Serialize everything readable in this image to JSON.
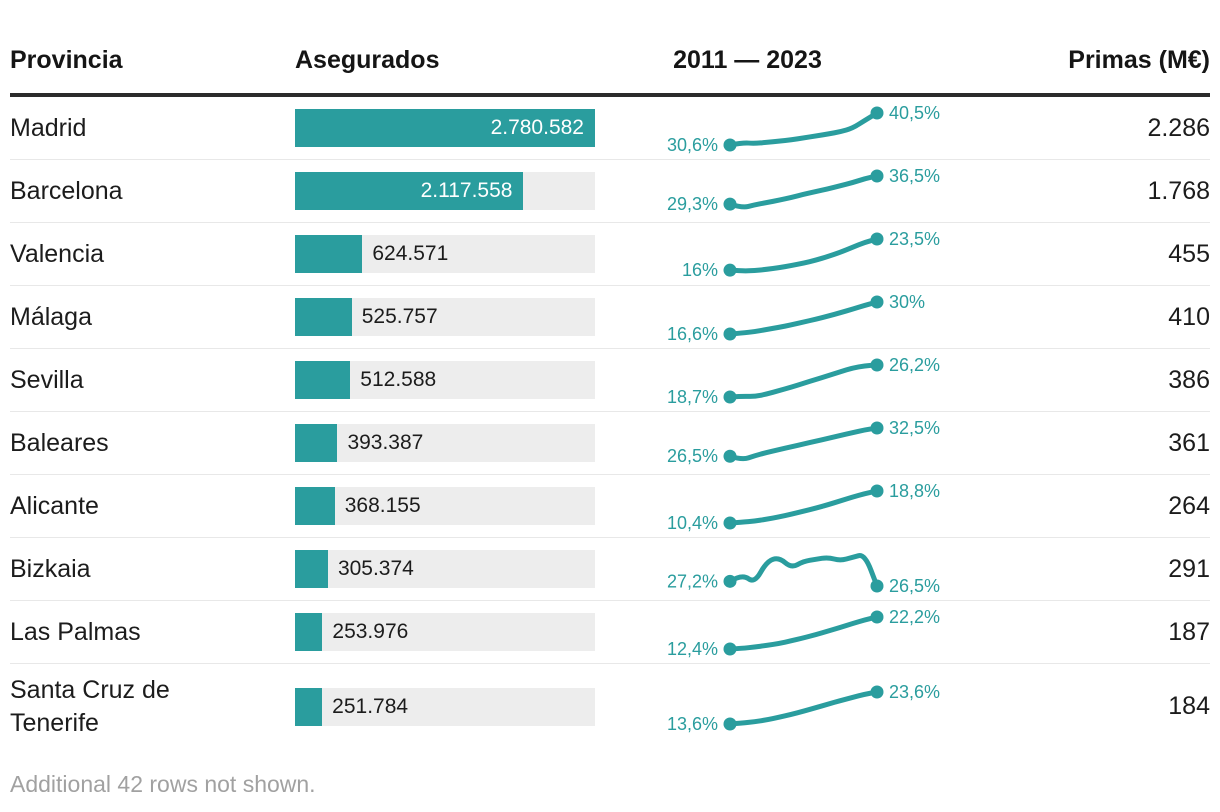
{
  "footer_note": "Additional 42 rows not shown.",
  "colors": {
    "accent": "#2a9d9e",
    "bar_track": "#ededed",
    "row_divider": "#e8e8e8",
    "header_rule": "#2b2b2b",
    "muted_text": "#a1a1a1",
    "text": "#1c1c1c",
    "bar_value_inside": "#ffffff"
  },
  "chart_data": {
    "type": "table",
    "columns": [
      "Provincia",
      "Asegurados",
      "2011 — 2023",
      "Primas (M€)"
    ],
    "bar_column": {
      "field": "asegurados",
      "max": 2780582
    },
    "sparkline": {
      "x_range": [
        2011,
        2023
      ],
      "unit": "%"
    },
    "rows": [
      {
        "provincia": "Madrid",
        "asegurados": 2780582,
        "asegurados_label": "2.780.582",
        "spark_values": [
          30.6,
          31.3,
          31.1,
          31.4,
          31.8,
          32.2,
          32.8,
          33.4,
          34.0,
          34.7,
          35.8,
          38.2,
          40.5
        ],
        "spark_start_label": "30,6%",
        "spark_end_label": "40,5%",
        "primas": 2286,
        "primas_label": "2.286"
      },
      {
        "provincia": "Barcelona",
        "asegurados": 2117558,
        "asegurados_label": "2.117.558",
        "spark_values": [
          29.3,
          28.3,
          29.1,
          29.7,
          30.3,
          31.0,
          31.8,
          32.5,
          33.2,
          34.0,
          34.8,
          35.8,
          36.5
        ],
        "spark_start_label": "29,3%",
        "spark_end_label": "36,5%",
        "primas": 1768,
        "primas_label": "1.768"
      },
      {
        "provincia": "Valencia",
        "asegurados": 624571,
        "asegurados_label": "624.571",
        "spark_values": [
          16.0,
          15.8,
          15.9,
          16.2,
          16.6,
          17.1,
          17.7,
          18.4,
          19.3,
          20.3,
          21.5,
          22.7,
          23.5
        ],
        "spark_start_label": "16%",
        "spark_end_label": "23,5%",
        "primas": 455,
        "primas_label": "455"
      },
      {
        "provincia": "Málaga",
        "asegurados": 525757,
        "asegurados_label": "525.757",
        "spark_values": [
          16.6,
          17.0,
          17.6,
          18.5,
          19.4,
          20.4,
          21.6,
          22.8,
          24.1,
          25.5,
          27.0,
          28.6,
          30.0
        ],
        "spark_start_label": "16,6%",
        "spark_end_label": "30%",
        "primas": 410,
        "primas_label": "410"
      },
      {
        "provincia": "Sevilla",
        "asegurados": 512588,
        "asegurados_label": "512.588",
        "spark_values": [
          18.7,
          18.9,
          18.8,
          19.4,
          20.2,
          21.0,
          21.9,
          22.8,
          23.7,
          24.6,
          25.5,
          26.0,
          26.2
        ],
        "spark_start_label": "18,7%",
        "spark_end_label": "26,2%",
        "primas": 386,
        "primas_label": "386"
      },
      {
        "provincia": "Baleares",
        "asegurados": 393387,
        "asegurados_label": "393.387",
        "spark_values": [
          26.5,
          25.7,
          26.6,
          27.3,
          27.9,
          28.5,
          29.1,
          29.7,
          30.3,
          30.9,
          31.5,
          32.1,
          32.5
        ],
        "spark_start_label": "26,5%",
        "spark_end_label": "32,5%",
        "primas": 361,
        "primas_label": "361"
      },
      {
        "provincia": "Alicante",
        "asegurados": 368155,
        "asegurados_label": "368.155",
        "spark_values": [
          10.4,
          10.6,
          10.9,
          11.4,
          12.0,
          12.7,
          13.5,
          14.3,
          15.2,
          16.2,
          17.2,
          18.1,
          18.8
        ],
        "spark_start_label": "10,4%",
        "spark_end_label": "18,8%",
        "primas": 264,
        "primas_label": "264"
      },
      {
        "provincia": "Bizkaia",
        "asegurados": 305374,
        "asegurados_label": "305.374",
        "spark_values": [
          27.2,
          28.3,
          26.9,
          30.2,
          30.8,
          29.2,
          30.2,
          30.5,
          30.8,
          30.3,
          30.8,
          31.3,
          26.5
        ],
        "spark_start_label": "27,2%",
        "spark_end_label": "26,5%",
        "primas": 291,
        "primas_label": "291"
      },
      {
        "provincia": "Las Palmas",
        "asegurados": 253976,
        "asegurados_label": "253.976",
        "spark_values": [
          12.4,
          12.6,
          13.0,
          13.5,
          14.1,
          14.9,
          15.8,
          16.8,
          17.9,
          19.0,
          20.2,
          21.3,
          22.2
        ],
        "spark_start_label": "12,4%",
        "spark_end_label": "22,2%",
        "primas": 187,
        "primas_label": "187"
      },
      {
        "provincia": "Santa Cruz de Tenerife",
        "asegurados": 251784,
        "asegurados_label": "251.784",
        "spark_values": [
          13.6,
          13.9,
          14.3,
          14.9,
          15.7,
          16.6,
          17.6,
          18.7,
          19.8,
          20.9,
          21.9,
          22.9,
          23.6
        ],
        "spark_start_label": "13,6%",
        "spark_end_label": "23,6%",
        "primas": 184,
        "primas_label": "184",
        "tall": true
      }
    ]
  }
}
